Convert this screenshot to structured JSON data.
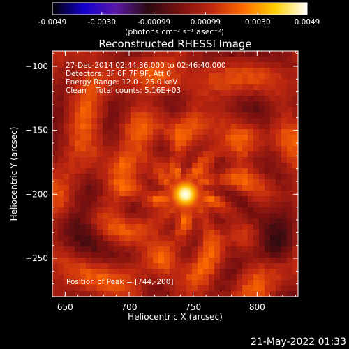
{
  "chart_data": {
    "type": "heatmap",
    "title": "Reconstructed RHESSI Image",
    "xlabel": "Heliocentric X (arcsec)",
    "ylabel": "Heliocentric Y (arcsec)",
    "xlim": [
      640,
      832
    ],
    "ylim": [
      -280,
      -88
    ],
    "x_ticks": [
      650,
      700,
      750,
      800
    ],
    "y_ticks": [
      -100,
      -150,
      -200,
      -250
    ],
    "peak": [
      744,
      -200
    ],
    "colorbar": {
      "range": [
        -0.0049,
        0.0049
      ],
      "tick_values": [
        -0.0049,
        -0.003,
        -0.00099,
        0.00099,
        0.003,
        0.0049
      ],
      "tick_labels": [
        "-0.0049",
        "-0.0030",
        "-0.00099",
        "0.00099",
        "0.0030",
        "0.0049"
      ],
      "unit_label": "(photons cm⁻² s⁻¹ asec⁻²)",
      "colormap": [
        "#000000",
        "#1400d0",
        "#5a18a8",
        "#2a0a10",
        "#7a1010",
        "#c02810",
        "#ff6a00",
        "#ffd000",
        "#ffffff"
      ]
    },
    "annotations": {
      "time_range": "27-Dec-2014 02:44:36.000 to 02:46:40.000",
      "detectors": "Detectors: 3F 6F 7F 9F, Att 0",
      "energy_range": "Energy Range: 12.0 - 25.0 keV",
      "algorithm": "Clean",
      "total_counts": "Total counts: 5.16E+03",
      "peak_text": "Position of Peak = [744,-200]"
    }
  },
  "footer": {
    "timestamp": "21-May-2022 01:33"
  }
}
